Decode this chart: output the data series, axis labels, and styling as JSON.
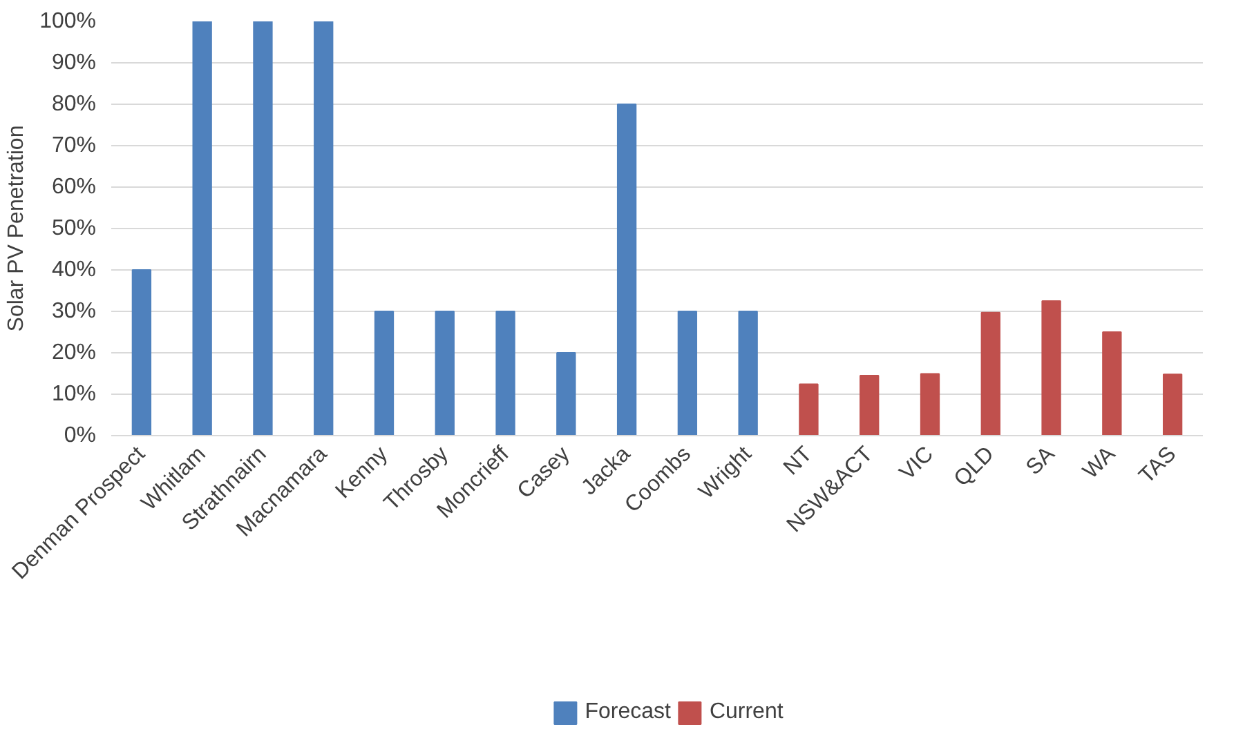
{
  "chart_data": {
    "type": "bar",
    "ylabel": "Solar PV Penetration",
    "categories": [
      "Denman Prospect",
      "Whitlam",
      "Strathnairn",
      "Macnamara",
      "Kenny",
      "Throsby",
      "Moncrieff",
      "Casey",
      "Jacka",
      "Coombs",
      "Wright",
      "NT",
      "NSW&ACT",
      "VIC",
      "QLD",
      "SA",
      "WA",
      "TAS"
    ],
    "series": [
      {
        "name": "Forecast",
        "color": "#4f81bd",
        "values": [
          40,
          100,
          100,
          100,
          30,
          30,
          30,
          20,
          80,
          30,
          30,
          null,
          null,
          null,
          null,
          null,
          null,
          null
        ]
      },
      {
        "name": "Current",
        "color": "#c0504d",
        "values": [
          null,
          null,
          null,
          null,
          null,
          null,
          null,
          null,
          null,
          null,
          null,
          12.4,
          14.5,
          14.9,
          29.7,
          32.5,
          25,
          14.8
        ]
      }
    ],
    "ylim": [
      0,
      100
    ],
    "yticks": [
      {
        "value": 0,
        "label": "0%"
      },
      {
        "value": 10,
        "label": "10%"
      },
      {
        "value": 20,
        "label": "20%"
      },
      {
        "value": 30,
        "label": "30%"
      },
      {
        "value": 40,
        "label": "40%"
      },
      {
        "value": 50,
        "label": "50%"
      },
      {
        "value": 60,
        "label": "60%"
      },
      {
        "value": 70,
        "label": "70%"
      },
      {
        "value": 80,
        "label": "80%"
      },
      {
        "value": 90,
        "label": "90%"
      },
      {
        "value": 100,
        "label": "100%"
      }
    ],
    "grid": "y",
    "legend": "bottom"
  }
}
